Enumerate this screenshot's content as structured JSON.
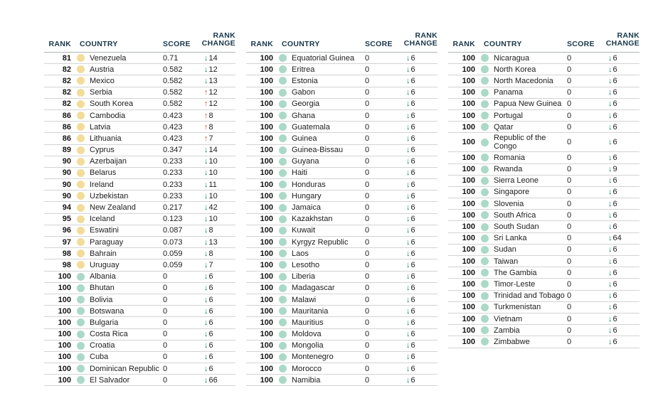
{
  "colors": {
    "header_text": "#18374a",
    "body_text": "#202020",
    "separator_row": "#d3d3d3",
    "separator_header": "#aeb4b4",
    "dot_yellow": "#f1dd99",
    "dot_green": "#abd9c7",
    "arrow_down": "#00796e",
    "arrow_up": "#bf4b3d"
  },
  "icons": {
    "down_arrow": "↓",
    "up_arrow": "↑",
    "score_dot": "circle"
  },
  "chart_data": {
    "type": "table",
    "columns": [
      "RANK",
      "COUNTRY",
      "SCORE",
      "RANK CHANGE"
    ],
    "layout": "three column blocks, ranks 81-100 continued across blocks",
    "column_blocks": [
      {
        "rows": [
          {
            "rank": "81",
            "country": "Venezuela",
            "score": "0.71",
            "dot": "yellow",
            "change_dir": "down",
            "change_value": "14"
          },
          {
            "rank": "82",
            "country": "Austria",
            "score": "0.582",
            "dot": "yellow",
            "change_dir": "down",
            "change_value": "12"
          },
          {
            "rank": "82",
            "country": "Mexico",
            "score": "0.582",
            "dot": "yellow",
            "change_dir": "down",
            "change_value": "13"
          },
          {
            "rank": "82",
            "country": "Serbia",
            "score": "0.582",
            "dot": "yellow",
            "change_dir": "up",
            "change_value": "12"
          },
          {
            "rank": "82",
            "country": "South Korea",
            "score": "0.582",
            "dot": "yellow",
            "change_dir": "up",
            "change_value": "12"
          },
          {
            "rank": "86",
            "country": "Cambodia",
            "score": "0.423",
            "dot": "yellow",
            "change_dir": "up",
            "change_value": "8"
          },
          {
            "rank": "86",
            "country": "Latvia",
            "score": "0.423",
            "dot": "yellow",
            "change_dir": "up",
            "change_value": "8"
          },
          {
            "rank": "86",
            "country": "Lithuania",
            "score": "0.423",
            "dot": "yellow",
            "change_dir": "up",
            "change_value": "7"
          },
          {
            "rank": "89",
            "country": "Cyprus",
            "score": "0.347",
            "dot": "yellow",
            "change_dir": "down",
            "change_value": "14"
          },
          {
            "rank": "90",
            "country": "Azerbaijan",
            "score": "0.233",
            "dot": "yellow",
            "change_dir": "down",
            "change_value": "10"
          },
          {
            "rank": "90",
            "country": "Belarus",
            "score": "0.233",
            "dot": "yellow",
            "change_dir": "down",
            "change_value": "10"
          },
          {
            "rank": "90",
            "country": "Ireland",
            "score": "0.233",
            "dot": "yellow",
            "change_dir": "down",
            "change_value": "11"
          },
          {
            "rank": "90",
            "country": "Uzbekistan",
            "score": "0.233",
            "dot": "yellow",
            "change_dir": "down",
            "change_value": "10"
          },
          {
            "rank": "94",
            "country": "New Zealand",
            "score": "0.217",
            "dot": "yellow",
            "change_dir": "down",
            "change_value": "42"
          },
          {
            "rank": "95",
            "country": "Iceland",
            "score": "0.123",
            "dot": "yellow",
            "change_dir": "down",
            "change_value": "10"
          },
          {
            "rank": "96",
            "country": "Eswatini",
            "score": "0.087",
            "dot": "yellow",
            "change_dir": "down",
            "change_value": "8"
          },
          {
            "rank": "97",
            "country": "Paraguay",
            "score": "0.073",
            "dot": "yellow",
            "change_dir": "down",
            "change_value": "13"
          },
          {
            "rank": "98",
            "country": "Bahrain",
            "score": "0.059",
            "dot": "yellow",
            "change_dir": "down",
            "change_value": "8"
          },
          {
            "rank": "98",
            "country": "Uruguay",
            "score": "0.059",
            "dot": "yellow",
            "change_dir": "down",
            "change_value": "7"
          },
          {
            "rank": "100",
            "country": "Albania",
            "score": "0",
            "dot": "green",
            "change_dir": "down",
            "change_value": "6"
          },
          {
            "rank": "100",
            "country": "Bhutan",
            "score": "0",
            "dot": "green",
            "change_dir": "down",
            "change_value": "6"
          },
          {
            "rank": "100",
            "country": "Bolivia",
            "score": "0",
            "dot": "green",
            "change_dir": "down",
            "change_value": "6"
          },
          {
            "rank": "100",
            "country": "Botswana",
            "score": "0",
            "dot": "green",
            "change_dir": "down",
            "change_value": "6"
          },
          {
            "rank": "100",
            "country": "Bulgaria",
            "score": "0",
            "dot": "green",
            "change_dir": "down",
            "change_value": "6"
          },
          {
            "rank": "100",
            "country": "Costa Rica",
            "score": "0",
            "dot": "green",
            "change_dir": "down",
            "change_value": "6"
          },
          {
            "rank": "100",
            "country": "Croatia",
            "score": "0",
            "dot": "green",
            "change_dir": "down",
            "change_value": "6"
          },
          {
            "rank": "100",
            "country": "Cuba",
            "score": "0",
            "dot": "green",
            "change_dir": "down",
            "change_value": "6"
          },
          {
            "rank": "100",
            "country": "Dominican Republic",
            "score": "0",
            "dot": "green",
            "change_dir": "down",
            "change_value": "6"
          },
          {
            "rank": "100",
            "country": "El Salvador",
            "score": "0",
            "dot": "green",
            "change_dir": "down",
            "change_value": "66"
          }
        ]
      },
      {
        "rows": [
          {
            "rank": "100",
            "country": "Equatorial Guinea",
            "score": "0",
            "dot": "green",
            "change_dir": "down",
            "change_value": "6"
          },
          {
            "rank": "100",
            "country": "Eritrea",
            "score": "0",
            "dot": "green",
            "change_dir": "down",
            "change_value": "6"
          },
          {
            "rank": "100",
            "country": "Estonia",
            "score": "0",
            "dot": "green",
            "change_dir": "down",
            "change_value": "6"
          },
          {
            "rank": "100",
            "country": "Gabon",
            "score": "0",
            "dot": "green",
            "change_dir": "down",
            "change_value": "6"
          },
          {
            "rank": "100",
            "country": "Georgia",
            "score": "0",
            "dot": "green",
            "change_dir": "down",
            "change_value": "6"
          },
          {
            "rank": "100",
            "country": "Ghana",
            "score": "0",
            "dot": "green",
            "change_dir": "down",
            "change_value": "6"
          },
          {
            "rank": "100",
            "country": "Guatemala",
            "score": "0",
            "dot": "green",
            "change_dir": "down",
            "change_value": "6"
          },
          {
            "rank": "100",
            "country": "Guinea",
            "score": "0",
            "dot": "green",
            "change_dir": "down",
            "change_value": "6"
          },
          {
            "rank": "100",
            "country": "Guinea-Bissau",
            "score": "0",
            "dot": "green",
            "change_dir": "down",
            "change_value": "6"
          },
          {
            "rank": "100",
            "country": "Guyana",
            "score": "0",
            "dot": "green",
            "change_dir": "down",
            "change_value": "6"
          },
          {
            "rank": "100",
            "country": "Haiti",
            "score": "0",
            "dot": "green",
            "change_dir": "down",
            "change_value": "6"
          },
          {
            "rank": "100",
            "country": "Honduras",
            "score": "0",
            "dot": "green",
            "change_dir": "down",
            "change_value": "6"
          },
          {
            "rank": "100",
            "country": "Hungary",
            "score": "0",
            "dot": "green",
            "change_dir": "down",
            "change_value": "6"
          },
          {
            "rank": "100",
            "country": "Jamaica",
            "score": "0",
            "dot": "green",
            "change_dir": "down",
            "change_value": "6"
          },
          {
            "rank": "100",
            "country": "Kazakhstan",
            "score": "0",
            "dot": "green",
            "change_dir": "down",
            "change_value": "6"
          },
          {
            "rank": "100",
            "country": "Kuwait",
            "score": "0",
            "dot": "green",
            "change_dir": "down",
            "change_value": "6"
          },
          {
            "rank": "100",
            "country": "Kyrgyz Republic",
            "score": "0",
            "dot": "green",
            "change_dir": "down",
            "change_value": "6"
          },
          {
            "rank": "100",
            "country": "Laos",
            "score": "0",
            "dot": "green",
            "change_dir": "down",
            "change_value": "6"
          },
          {
            "rank": "100",
            "country": "Lesotho",
            "score": "0",
            "dot": "green",
            "change_dir": "down",
            "change_value": "6"
          },
          {
            "rank": "100",
            "country": "Liberia",
            "score": "0",
            "dot": "green",
            "change_dir": "down",
            "change_value": "6"
          },
          {
            "rank": "100",
            "country": "Madagascar",
            "score": "0",
            "dot": "green",
            "change_dir": "down",
            "change_value": "6"
          },
          {
            "rank": "100",
            "country": "Malawi",
            "score": "0",
            "dot": "green",
            "change_dir": "down",
            "change_value": "6"
          },
          {
            "rank": "100",
            "country": "Mauritania",
            "score": "0",
            "dot": "green",
            "change_dir": "down",
            "change_value": "6"
          },
          {
            "rank": "100",
            "country": "Mauritius",
            "score": "0",
            "dot": "green",
            "change_dir": "down",
            "change_value": "6"
          },
          {
            "rank": "100",
            "country": "Moldova",
            "score": "0",
            "dot": "green",
            "change_dir": "down",
            "change_value": "6"
          },
          {
            "rank": "100",
            "country": "Mongolia",
            "score": "0",
            "dot": "green",
            "change_dir": "down",
            "change_value": "6"
          },
          {
            "rank": "100",
            "country": "Montenegro",
            "score": "0",
            "dot": "green",
            "change_dir": "down",
            "change_value": "6"
          },
          {
            "rank": "100",
            "country": "Morocco",
            "score": "0",
            "dot": "green",
            "change_dir": "down",
            "change_value": "6"
          },
          {
            "rank": "100",
            "country": "Namibia",
            "score": "0",
            "dot": "green",
            "change_dir": "down",
            "change_value": "6"
          }
        ]
      },
      {
        "rows": [
          {
            "rank": "100",
            "country": "Nicaragua",
            "score": "0",
            "dot": "green",
            "change_dir": "down",
            "change_value": "6"
          },
          {
            "rank": "100",
            "country": "North Korea",
            "score": "0",
            "dot": "green",
            "change_dir": "down",
            "change_value": "6"
          },
          {
            "rank": "100",
            "country": "North Macedonia",
            "score": "0",
            "dot": "green",
            "change_dir": "down",
            "change_value": "6"
          },
          {
            "rank": "100",
            "country": "Panama",
            "score": "0",
            "dot": "green",
            "change_dir": "down",
            "change_value": "6"
          },
          {
            "rank": "100",
            "country": "Papua New Guinea",
            "score": "0",
            "dot": "green",
            "change_dir": "down",
            "change_value": "6"
          },
          {
            "rank": "100",
            "country": "Portugal",
            "score": "0",
            "dot": "green",
            "change_dir": "down",
            "change_value": "6"
          },
          {
            "rank": "100",
            "country": "Qatar",
            "score": "0",
            "dot": "green",
            "change_dir": "down",
            "change_value": "6"
          },
          {
            "rank": "100",
            "country": "Republic of the Congo",
            "score": "0",
            "dot": "green",
            "change_dir": "down",
            "change_value": "6"
          },
          {
            "rank": "100",
            "country": "Romania",
            "score": "0",
            "dot": "green",
            "change_dir": "down",
            "change_value": "6"
          },
          {
            "rank": "100",
            "country": "Rwanda",
            "score": "0",
            "dot": "green",
            "change_dir": "down",
            "change_value": "9"
          },
          {
            "rank": "100",
            "country": "Sierra Leone",
            "score": "0",
            "dot": "green",
            "change_dir": "down",
            "change_value": "6"
          },
          {
            "rank": "100",
            "country": "Singapore",
            "score": "0",
            "dot": "green",
            "change_dir": "down",
            "change_value": "6"
          },
          {
            "rank": "100",
            "country": "Slovenia",
            "score": "0",
            "dot": "green",
            "change_dir": "down",
            "change_value": "6"
          },
          {
            "rank": "100",
            "country": "South Africa",
            "score": "0",
            "dot": "green",
            "change_dir": "down",
            "change_value": "6"
          },
          {
            "rank": "100",
            "country": "South Sudan",
            "score": "0",
            "dot": "green",
            "change_dir": "down",
            "change_value": "6"
          },
          {
            "rank": "100",
            "country": "Sri Lanka",
            "score": "0",
            "dot": "green",
            "change_dir": "down",
            "change_value": "64"
          },
          {
            "rank": "100",
            "country": "Sudan",
            "score": "0",
            "dot": "green",
            "change_dir": "down",
            "change_value": "6"
          },
          {
            "rank": "100",
            "country": "Taiwan",
            "score": "0",
            "dot": "green",
            "change_dir": "down",
            "change_value": "6"
          },
          {
            "rank": "100",
            "country": "The Gambia",
            "score": "0",
            "dot": "green",
            "change_dir": "down",
            "change_value": "6"
          },
          {
            "rank": "100",
            "country": "Timor-Leste",
            "score": "0",
            "dot": "green",
            "change_dir": "down",
            "change_value": "6"
          },
          {
            "rank": "100",
            "country": "Trinidad and Tobago",
            "score": "0",
            "dot": "green",
            "change_dir": "down",
            "change_value": "6"
          },
          {
            "rank": "100",
            "country": "Turkmenistan",
            "score": "0",
            "dot": "green",
            "change_dir": "down",
            "change_value": "6"
          },
          {
            "rank": "100",
            "country": "Vietnam",
            "score": "0",
            "dot": "green",
            "change_dir": "down",
            "change_value": "6"
          },
          {
            "rank": "100",
            "country": "Zambia",
            "score": "0",
            "dot": "green",
            "change_dir": "down",
            "change_value": "6"
          },
          {
            "rank": "100",
            "country": "Zimbabwe",
            "score": "0",
            "dot": "green",
            "change_dir": "down",
            "change_value": "6"
          }
        ]
      }
    ]
  }
}
